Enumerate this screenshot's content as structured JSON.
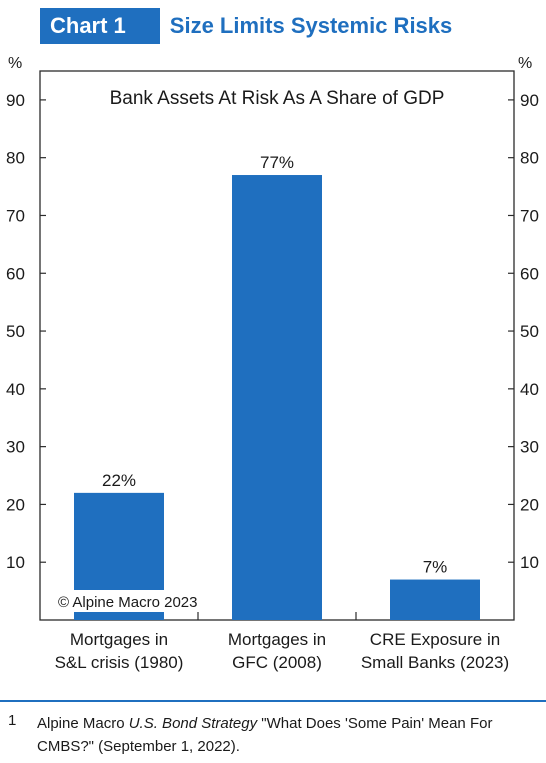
{
  "header": {
    "chart_number": "Chart 1",
    "title": "Size Limits Systemic Risks"
  },
  "colors": {
    "accent": "#1f6fbf",
    "bar": "#1f6fbf"
  },
  "chart_data": {
    "type": "bar",
    "title": "Bank Assets At Risk As A Share of GDP",
    "categories": [
      [
        "Mortgages in",
        "S&L crisis (1980)"
      ],
      [
        "Mortgages in",
        "GFC (2008)"
      ],
      [
        "CRE Exposure in",
        "Small Banks (2023)"
      ]
    ],
    "values": [
      22,
      77,
      7
    ],
    "data_labels": [
      "22%",
      "77%",
      "7%"
    ],
    "ylim": [
      0,
      95
    ],
    "yticks": [
      10,
      20,
      30,
      40,
      50,
      60,
      70,
      80,
      90
    ],
    "y_unit_label_left": "%",
    "y_unit_label_right": "%",
    "copyright": "© Alpine Macro 2023",
    "grid": false
  },
  "footnote": {
    "number": "1",
    "prefix": "Alpine Macro ",
    "italic": "U.S. Bond Strategy",
    "suffix": " \"What Does 'Some Pain' Mean For CMBS?\" (September 1, 2022)."
  }
}
